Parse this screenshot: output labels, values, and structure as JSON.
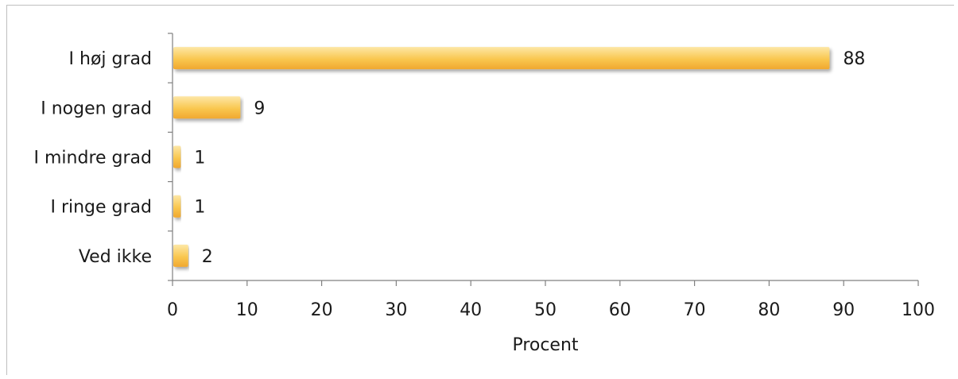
{
  "chart_data": {
    "type": "bar",
    "orientation": "horizontal",
    "categories": [
      "I høj grad",
      "I nogen grad",
      "I mindre grad",
      "I ringe grad",
      "Ved ikke"
    ],
    "values": [
      88,
      9,
      1,
      1,
      2
    ],
    "data_labels": [
      "88",
      "9",
      "1",
      "1",
      "2"
    ],
    "title": "",
    "xlabel": "Procent",
    "ylabel": "",
    "xlim": [
      0,
      100
    ],
    "x_ticks": [
      "0",
      "10",
      "20",
      "30",
      "40",
      "50",
      "60",
      "70",
      "80",
      "90",
      "100"
    ],
    "grid": false,
    "legend": "none",
    "bar_color": "#f9c74f",
    "bar_color_light": "#fde7a6",
    "bar_color_dark": "#f0a830"
  }
}
